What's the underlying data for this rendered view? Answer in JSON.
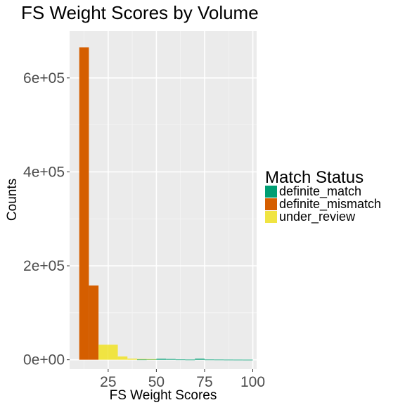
{
  "chart_data": {
    "type": "bar",
    "title": "FS Weight Scores by Volume",
    "xlabel": "FS Weight Scores",
    "ylabel": "Counts",
    "xlim": [
      5,
      102
    ],
    "ylim": [
      -20000,
      700000
    ],
    "x_ticks": [
      25,
      50,
      75,
      100
    ],
    "y_ticks": [
      0,
      200000,
      400000,
      600000
    ],
    "x_tick_labels": [
      "25",
      "50",
      "75",
      "100"
    ],
    "y_tick_labels": [
      "0e+00",
      "2e+05",
      "4e+05",
      "6e+05"
    ],
    "bin_width": 5,
    "grid": true,
    "stacked": true,
    "legend": {
      "title": "Match Status",
      "position": "right"
    },
    "series": [
      {
        "name": "definite_match",
        "color": "#009E73",
        "bins": [
          {
            "x0": 40,
            "x1": 45,
            "count": 500
          },
          {
            "x0": 45,
            "x1": 50,
            "count": 800
          },
          {
            "x0": 50,
            "x1": 55,
            "count": 2000
          },
          {
            "x0": 55,
            "x1": 60,
            "count": 1500
          },
          {
            "x0": 60,
            "x1": 65,
            "count": 500
          },
          {
            "x0": 65,
            "x1": 70,
            "count": 300
          },
          {
            "x0": 70,
            "x1": 75,
            "count": 2200
          },
          {
            "x0": 75,
            "x1": 80,
            "count": 400
          },
          {
            "x0": 80,
            "x1": 85,
            "count": 300
          },
          {
            "x0": 85,
            "x1": 90,
            "count": 200
          },
          {
            "x0": 90,
            "x1": 95,
            "count": 150
          },
          {
            "x0": 95,
            "x1": 100,
            "count": 100
          }
        ]
      },
      {
        "name": "definite_mismatch",
        "color": "#D55E00",
        "bins": [
          {
            "x0": 10,
            "x1": 15,
            "count": 665000
          },
          {
            "x0": 15,
            "x1": 20,
            "count": 158000
          }
        ]
      },
      {
        "name": "under_review",
        "color": "#F0E442",
        "bins": [
          {
            "x0": 20,
            "x1": 25,
            "count": 32000
          },
          {
            "x0": 25,
            "x1": 30,
            "count": 32000
          },
          {
            "x0": 30,
            "x1": 35,
            "count": 7000
          },
          {
            "x0": 35,
            "x1": 40,
            "count": 2500
          },
          {
            "x0": 40,
            "x1": 45,
            "count": 1200
          },
          {
            "x0": 45,
            "x1": 50,
            "count": 600
          }
        ]
      }
    ]
  }
}
